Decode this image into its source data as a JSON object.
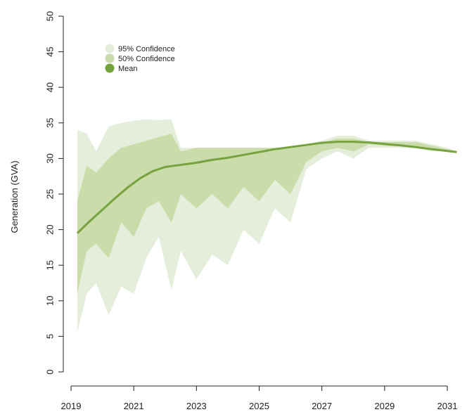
{
  "chart_data": {
    "type": "area",
    "ylabel": "Generation (GVA)",
    "xlabel": "",
    "ylim": [
      0,
      50
    ],
    "xlim": [
      2019,
      2031.3
    ],
    "yticks": [
      0,
      5,
      10,
      15,
      20,
      25,
      30,
      35,
      40,
      45,
      50
    ],
    "xticks": [
      2019,
      2021,
      2023,
      2025,
      2027,
      2029,
      2031
    ],
    "grid": false,
    "legend_position": "top-left",
    "legend": [
      {
        "label": "95% Confidence",
        "color": "#e4eedb"
      },
      {
        "label": "50% Confidence",
        "color": "#c9dca9"
      },
      {
        "label": "Mean",
        "color": "#76a23f"
      }
    ],
    "series": [
      {
        "name": "95% Confidence",
        "color": "#e4eedb",
        "x": [
          2019.2,
          2019.5,
          2019.8,
          2020.2,
          2020.6,
          2021.0,
          2021.4,
          2021.8,
          2022.2,
          2022.5,
          2023.0,
          2023.5,
          2024.0,
          2024.5,
          2025.0,
          2025.5,
          2026.0,
          2026.5,
          2027.0,
          2027.5,
          2028.0,
          2028.5,
          2029.0,
          2029.5,
          2030.0,
          2030.5,
          2031.0,
          2031.3
        ],
        "upper": [
          34,
          33.5,
          31,
          34.5,
          35,
          35.3,
          35.5,
          35.4,
          35.5,
          31.5,
          31.5,
          31.5,
          31.5,
          31.5,
          31.5,
          31.5,
          31.5,
          32,
          32.5,
          33.2,
          33.2,
          32.5,
          32.5,
          32.5,
          32.5,
          32,
          31.5,
          31
        ],
        "lower": [
          5.5,
          11,
          12.5,
          8,
          12,
          11,
          16,
          19,
          11.5,
          17,
          13,
          16.5,
          15,
          20,
          18,
          23,
          21,
          28.5,
          30,
          31,
          30,
          31.5,
          31.5,
          31.5,
          31.5,
          31,
          31,
          31
        ]
      },
      {
        "name": "50% Confidence",
        "color": "#c9dca9",
        "x": [
          2019.2,
          2019.5,
          2019.8,
          2020.2,
          2020.6,
          2021.0,
          2021.4,
          2021.8,
          2022.2,
          2022.5,
          2023.0,
          2023.5,
          2024.0,
          2024.5,
          2025.0,
          2025.5,
          2026.0,
          2026.5,
          2027.0,
          2027.5,
          2028.0,
          2028.5,
          2029.0,
          2029.5,
          2030.0,
          2030.5,
          2031.0,
          2031.3
        ],
        "upper": [
          24,
          29,
          28,
          30,
          31.5,
          32,
          32.5,
          33,
          33.5,
          31,
          31.5,
          31.5,
          31.5,
          31.5,
          31.5,
          31.5,
          31.5,
          32,
          32.2,
          32.8,
          32.8,
          32.3,
          32.3,
          32.3,
          32.3,
          31.8,
          31.3,
          31
        ],
        "lower": [
          11,
          17,
          18,
          16,
          21,
          19,
          23,
          24,
          21,
          25,
          23,
          25,
          23,
          26,
          24,
          27,
          25,
          29.5,
          31,
          31.5,
          31,
          32,
          31.8,
          31.7,
          31.6,
          31.2,
          31,
          31
        ]
      },
      {
        "name": "Mean",
        "color": "#76a23f",
        "x": [
          2019.2,
          2019.6,
          2020.0,
          2020.4,
          2020.8,
          2021.2,
          2021.6,
          2022.0,
          2022.5,
          2023.0,
          2023.5,
          2024.0,
          2024.5,
          2025.0,
          2025.5,
          2026.0,
          2026.5,
          2027.0,
          2027.5,
          2028.0,
          2028.5,
          2029.0,
          2029.5,
          2030.0,
          2030.5,
          2031.0,
          2031.3
        ],
        "y": [
          19.5,
          21.2,
          22.8,
          24.4,
          25.9,
          27.2,
          28.2,
          28.8,
          29.1,
          29.4,
          29.8,
          30.1,
          30.5,
          30.9,
          31.3,
          31.6,
          31.9,
          32.2,
          32.35,
          32.35,
          32.25,
          32.05,
          31.85,
          31.6,
          31.3,
          31.05,
          30.9
        ]
      }
    ]
  }
}
